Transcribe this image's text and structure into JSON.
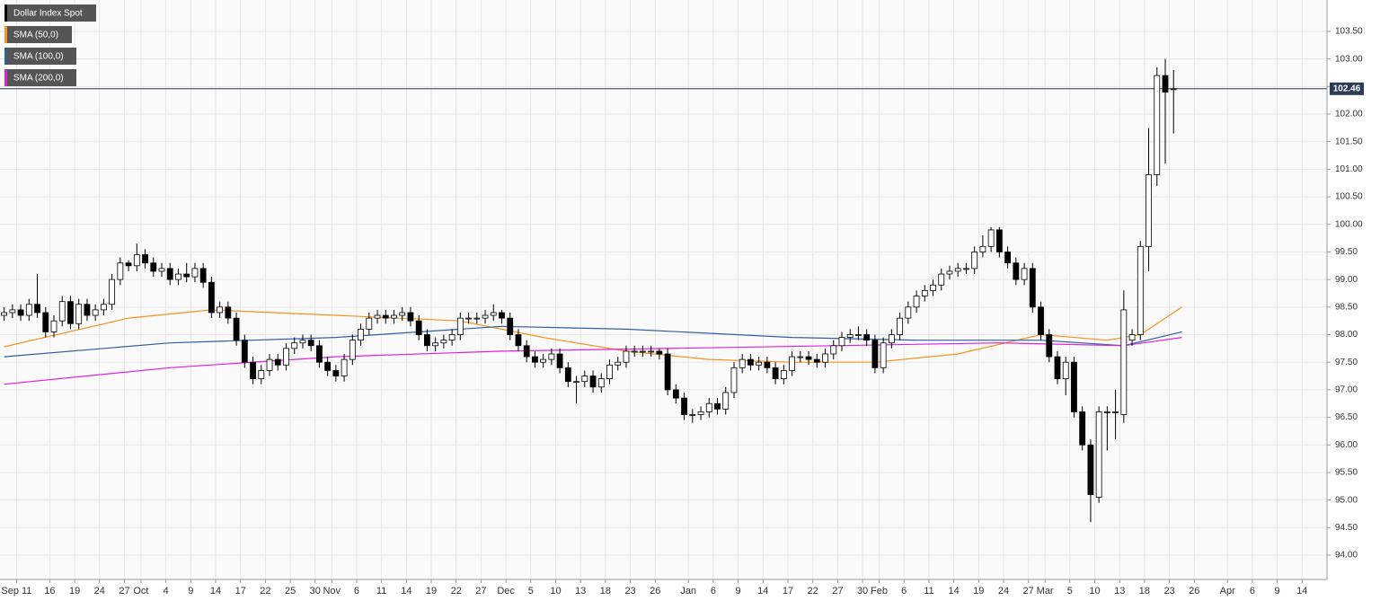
{
  "chart_data": {
    "type": "candlestick",
    "name": "Dollar Index Spot",
    "up_color": "#ffffff",
    "down_color": "#000000",
    "grid": true,
    "x": [
      0,
      1,
      2,
      3,
      4,
      5,
      6,
      7,
      8,
      9,
      10,
      11,
      12,
      13,
      14,
      15,
      16,
      17,
      18,
      19,
      20,
      21,
      22,
      23,
      24,
      25,
      26,
      27,
      28,
      29,
      30,
      31,
      32,
      33,
      34,
      35,
      36,
      37,
      38,
      39,
      40,
      41,
      42,
      43,
      44,
      45,
      46,
      47,
      48,
      49,
      50,
      51,
      52,
      53,
      54,
      55,
      56,
      57,
      58,
      59,
      60,
      61,
      62,
      63,
      64,
      65,
      66,
      67,
      68,
      69,
      70,
      71,
      72,
      73,
      74,
      75,
      76,
      77,
      78,
      79,
      80,
      81,
      82,
      83,
      84,
      85,
      86,
      87,
      88,
      89,
      90,
      91,
      92,
      93,
      94,
      95,
      96,
      97,
      98,
      99,
      100,
      101,
      102,
      103,
      104,
      105,
      106,
      107,
      108,
      109,
      110,
      111,
      112,
      113,
      114,
      115,
      116,
      117,
      118,
      119,
      120,
      121,
      122,
      123,
      124,
      125,
      126,
      127,
      128,
      129,
      130,
      131,
      132,
      133,
      134,
      135,
      136,
      137,
      138,
      139,
      140,
      141
    ],
    "open": [
      98.35,
      98.4,
      98.45,
      98.35,
      98.55,
      98.4,
      98.05,
      98.25,
      98.6,
      98.2,
      98.55,
      98.35,
      98.45,
      98.55,
      99.0,
      99.3,
      99.25,
      99.45,
      99.3,
      99.15,
      99.2,
      99.0,
      99.1,
      99.05,
      99.2,
      98.95,
      98.4,
      98.5,
      98.3,
      97.9,
      97.5,
      97.2,
      97.35,
      97.55,
      97.45,
      97.75,
      97.85,
      97.9,
      97.8,
      97.5,
      97.35,
      97.25,
      97.55,
      97.9,
      98.1,
      98.3,
      98.35,
      98.3,
      98.35,
      98.4,
      98.25,
      98.0,
      97.8,
      97.85,
      97.9,
      98.0,
      98.3,
      98.3,
      98.3,
      98.35,
      98.4,
      98.3,
      98.0,
      97.8,
      97.6,
      97.5,
      97.55,
      97.65,
      97.4,
      97.15,
      97.15,
      97.25,
      97.05,
      97.2,
      97.45,
      97.5,
      97.7,
      97.7,
      97.7,
      97.7,
      97.65,
      97.0,
      96.85,
      96.55,
      96.55,
      96.6,
      96.75,
      96.65,
      96.95,
      97.4,
      97.55,
      97.45,
      97.5,
      97.4,
      97.2,
      97.35,
      97.6,
      97.6,
      97.55,
      97.5,
      97.65,
      97.8,
      97.95,
      98.0,
      98.0,
      97.9,
      97.4,
      97.85,
      98.0,
      98.3,
      98.5,
      98.7,
      98.8,
      98.9,
      99.1,
      99.15,
      99.2,
      99.2,
      99.5,
      99.6,
      99.9,
      99.5,
      99.3,
      99.0,
      99.2,
      98.5,
      98.0,
      97.6,
      97.2,
      97.5,
      96.6,
      96.0,
      95.05,
      96.6,
      96.6,
      96.55,
      97.9,
      98.0,
      99.6,
      100.9,
      102.7,
      102.45
    ],
    "high": [
      98.5,
      98.55,
      98.55,
      98.65,
      99.1,
      98.5,
      98.35,
      98.7,
      98.7,
      98.65,
      98.65,
      98.55,
      98.65,
      99.1,
      99.4,
      99.35,
      99.65,
      99.55,
      99.4,
      99.3,
      99.3,
      99.2,
      99.3,
      99.3,
      99.3,
      99.05,
      98.6,
      98.6,
      98.4,
      98.0,
      97.6,
      97.45,
      97.65,
      97.65,
      97.85,
      97.95,
      98.0,
      98.0,
      97.9,
      97.6,
      97.45,
      97.65,
      98.0,
      98.2,
      98.4,
      98.45,
      98.45,
      98.45,
      98.5,
      98.5,
      98.35,
      98.1,
      97.95,
      98.0,
      98.1,
      98.4,
      98.4,
      98.4,
      98.45,
      98.55,
      98.45,
      98.4,
      98.1,
      97.9,
      97.7,
      97.65,
      97.75,
      97.75,
      97.5,
      97.25,
      97.35,
      97.35,
      97.3,
      97.55,
      97.6,
      97.8,
      97.8,
      97.8,
      97.8,
      97.75,
      97.75,
      97.1,
      96.95,
      96.65,
      96.7,
      96.85,
      96.85,
      97.05,
      97.5,
      97.65,
      97.65,
      97.6,
      97.6,
      97.5,
      97.45,
      97.7,
      97.7,
      97.7,
      97.65,
      97.75,
      97.9,
      98.05,
      98.1,
      98.15,
      98.1,
      98.0,
      97.95,
      98.1,
      98.4,
      98.6,
      98.8,
      98.9,
      99.0,
      99.2,
      99.25,
      99.3,
      99.3,
      99.6,
      99.8,
      99.95,
      99.95,
      99.6,
      99.4,
      99.3,
      99.3,
      98.6,
      98.1,
      97.7,
      97.6,
      97.6,
      96.7,
      96.1,
      96.7,
      96.7,
      97.0,
      98.8,
      98.1,
      99.7,
      101.75,
      102.85,
      103.0,
      102.8
    ],
    "low": [
      98.25,
      98.3,
      98.25,
      98.25,
      98.3,
      97.95,
      97.95,
      98.15,
      98.1,
      98.1,
      98.25,
      98.25,
      98.35,
      98.45,
      98.9,
      99.15,
      99.15,
      99.2,
      99.05,
      99.05,
      98.9,
      98.9,
      98.95,
      98.95,
      98.85,
      98.3,
      98.3,
      98.2,
      97.8,
      97.4,
      97.1,
      97.1,
      97.25,
      97.35,
      97.35,
      97.65,
      97.75,
      97.7,
      97.4,
      97.25,
      97.15,
      97.15,
      97.45,
      97.8,
      98.0,
      98.2,
      98.2,
      98.2,
      98.25,
      98.15,
      97.9,
      97.7,
      97.7,
      97.75,
      97.8,
      97.9,
      98.2,
      98.2,
      98.2,
      98.25,
      98.2,
      97.9,
      97.7,
      97.5,
      97.4,
      97.4,
      97.45,
      97.3,
      97.05,
      96.75,
      97.05,
      96.95,
      96.95,
      97.1,
      97.35,
      97.4,
      97.6,
      97.6,
      97.6,
      97.55,
      96.9,
      96.75,
      96.45,
      96.4,
      96.45,
      96.5,
      96.55,
      96.55,
      96.85,
      97.3,
      97.35,
      97.35,
      97.3,
      97.1,
      97.1,
      97.25,
      97.5,
      97.45,
      97.4,
      97.4,
      97.55,
      97.7,
      97.85,
      97.9,
      97.8,
      97.3,
      97.3,
      97.75,
      97.9,
      98.2,
      98.4,
      98.6,
      98.7,
      98.8,
      99.0,
      99.05,
      99.1,
      99.1,
      99.4,
      99.5,
      99.4,
      99.2,
      98.9,
      98.9,
      98.4,
      97.9,
      97.5,
      97.1,
      96.9,
      96.5,
      95.9,
      94.6,
      94.95,
      95.9,
      96.1,
      96.4,
      97.8,
      97.9,
      99.15,
      100.7,
      101.1,
      101.65
    ],
    "close": [
      98.4,
      98.45,
      98.35,
      98.55,
      98.4,
      98.05,
      98.25,
      98.6,
      98.2,
      98.55,
      98.35,
      98.45,
      98.55,
      99.0,
      99.3,
      99.25,
      99.45,
      99.3,
      99.15,
      99.2,
      99.0,
      99.1,
      99.05,
      99.2,
      98.95,
      98.4,
      98.5,
      98.3,
      97.9,
      97.5,
      97.2,
      97.35,
      97.55,
      97.45,
      97.75,
      97.85,
      97.9,
      97.8,
      97.5,
      97.35,
      97.25,
      97.55,
      97.9,
      98.1,
      98.3,
      98.35,
      98.3,
      98.35,
      98.4,
      98.25,
      98.0,
      97.8,
      97.85,
      97.9,
      98.0,
      98.3,
      98.3,
      98.3,
      98.35,
      98.4,
      98.3,
      98.0,
      97.8,
      97.6,
      97.5,
      97.55,
      97.65,
      97.4,
      97.15,
      97.15,
      97.25,
      97.05,
      97.2,
      97.45,
      97.5,
      97.7,
      97.7,
      97.7,
      97.7,
      97.65,
      97.0,
      96.85,
      96.55,
      96.55,
      96.6,
      96.75,
      96.65,
      96.95,
      97.4,
      97.55,
      97.45,
      97.5,
      97.4,
      97.2,
      97.35,
      97.6,
      97.6,
      97.55,
      97.5,
      97.65,
      97.8,
      97.95,
      98.0,
      98.0,
      97.9,
      97.4,
      97.85,
      98.0,
      98.3,
      98.5,
      98.7,
      98.8,
      98.9,
      99.1,
      99.15,
      99.2,
      99.2,
      99.5,
      99.6,
      99.9,
      99.5,
      99.3,
      99.0,
      99.2,
      98.5,
      98.0,
      97.6,
      97.2,
      97.5,
      96.6,
      96.0,
      95.1,
      96.6,
      96.6,
      96.6,
      98.45,
      98.0,
      99.6,
      100.9,
      102.7,
      102.4,
      102.46
    ],
    "overlays": [
      {
        "name": "SMA (50,0)",
        "color": "#f7931e",
        "x": [
          0,
          15,
          25,
          40,
          55,
          65,
          75,
          85,
          95,
          105,
          115,
          125,
          133,
          137,
          142
        ],
        "values": [
          97.78,
          98.3,
          98.45,
          98.35,
          98.25,
          97.95,
          97.7,
          97.55,
          97.5,
          97.5,
          97.65,
          98.0,
          97.9,
          98.0,
          98.5
        ]
      },
      {
        "name": "SMA (100,0)",
        "color": "#2e5fa3",
        "x": [
          0,
          20,
          40,
          60,
          75,
          95,
          110,
          125,
          135,
          142
        ],
        "values": [
          97.6,
          97.85,
          97.95,
          98.15,
          98.1,
          97.95,
          97.9,
          97.9,
          97.8,
          98.05
        ]
      },
      {
        "name": "SMA (200,0)",
        "color": "#e020e0",
        "x": [
          0,
          20,
          40,
          60,
          80,
          100,
          120,
          135,
          142
        ],
        "values": [
          97.1,
          97.4,
          97.6,
          97.7,
          97.75,
          97.8,
          97.85,
          97.8,
          97.95
        ]
      }
    ],
    "last_price": 102.46,
    "last_color": "#2b3b55",
    "xlim": [
      -0.5,
      159.5
    ],
    "ylim": [
      93.56,
      104.07
    ],
    "yticks": [
      {
        "value": 94,
        "label": "94.00"
      },
      {
        "value": 94.5,
        "label": "94.50"
      },
      {
        "value": 95,
        "label": "95.00"
      },
      {
        "value": 95.5,
        "label": "95.50"
      },
      {
        "value": 96,
        "label": "96.00"
      },
      {
        "value": 96.5,
        "label": "96.50"
      },
      {
        "value": 97,
        "label": "97.00"
      },
      {
        "value": 97.5,
        "label": "97.50"
      },
      {
        "value": 98,
        "label": "98.00"
      },
      {
        "value": 98.5,
        "label": "98.50"
      },
      {
        "value": 99,
        "label": "99.00"
      },
      {
        "value": 99.5,
        "label": "99.50"
      },
      {
        "value": 100,
        "label": "100.00"
      },
      {
        "value": 100.5,
        "label": "100.50"
      },
      {
        "value": 101,
        "label": "101.00"
      },
      {
        "value": 101.5,
        "label": "101.50"
      },
      {
        "value": 102,
        "label": "102.00"
      },
      {
        "value": 102.5,
        "label": "102.50"
      },
      {
        "value": 103,
        "label": "103.00"
      },
      {
        "value": 103.5,
        "label": "103.50"
      }
    ],
    "xticks": [
      {
        "value": 1.5,
        "label": "Sep 11"
      },
      {
        "value": 5.5,
        "label": "16"
      },
      {
        "value": 8.5,
        "label": "19"
      },
      {
        "value": 11.5,
        "label": "24"
      },
      {
        "value": 14.5,
        "label": "27"
      },
      {
        "value": 16.5,
        "label": "Oct"
      },
      {
        "value": 19.5,
        "label": "4"
      },
      {
        "value": 22.5,
        "label": "9"
      },
      {
        "value": 25.5,
        "label": "14"
      },
      {
        "value": 28.5,
        "label": "17"
      },
      {
        "value": 31.5,
        "label": "22"
      },
      {
        "value": 34.5,
        "label": "25"
      },
      {
        "value": 37.5,
        "label": "30"
      },
      {
        "value": 39.5,
        "label": "Nov"
      },
      {
        "value": 42.5,
        "label": "6"
      },
      {
        "value": 45.5,
        "label": "11"
      },
      {
        "value": 48.5,
        "label": "14"
      },
      {
        "value": 51.5,
        "label": "19"
      },
      {
        "value": 54.5,
        "label": "22"
      },
      {
        "value": 57.5,
        "label": "27"
      },
      {
        "value": 60.5,
        "label": "Dec"
      },
      {
        "value": 63.5,
        "label": "5"
      },
      {
        "value": 66.5,
        "label": "10"
      },
      {
        "value": 69.5,
        "label": "13"
      },
      {
        "value": 72.5,
        "label": "18"
      },
      {
        "value": 75.5,
        "label": "23"
      },
      {
        "value": 78.5,
        "label": "26"
      },
      {
        "value": 82.5,
        "label": "Jan"
      },
      {
        "value": 85.5,
        "label": "6"
      },
      {
        "value": 88.5,
        "label": "9"
      },
      {
        "value": 91.5,
        "label": "14"
      },
      {
        "value": 94.5,
        "label": "17"
      },
      {
        "value": 97.5,
        "label": "22"
      },
      {
        "value": 100.5,
        "label": "27"
      },
      {
        "value": 103.5,
        "label": "30"
      },
      {
        "value": 105.5,
        "label": "Feb"
      },
      {
        "value": 108.5,
        "label": "6"
      },
      {
        "value": 111.5,
        "label": "11"
      },
      {
        "value": 114.5,
        "label": "14"
      },
      {
        "value": 117.5,
        "label": "19"
      },
      {
        "value": 120.5,
        "label": "24"
      },
      {
        "value": 123.5,
        "label": "27"
      },
      {
        "value": 125.5,
        "label": "Mar"
      },
      {
        "value": 128.5,
        "label": "5"
      },
      {
        "value": 131.5,
        "label": "10"
      },
      {
        "value": 134.5,
        "label": "13"
      },
      {
        "value": 137.5,
        "label": "18"
      },
      {
        "value": 140.5,
        "label": "23"
      },
      {
        "value": 143.5,
        "label": "26"
      },
      {
        "value": 147.5,
        "label": "Apr"
      },
      {
        "value": 150.5,
        "label": "6"
      },
      {
        "value": 153.5,
        "label": "9"
      },
      {
        "value": 156.5,
        "label": "14"
      }
    ]
  }
}
